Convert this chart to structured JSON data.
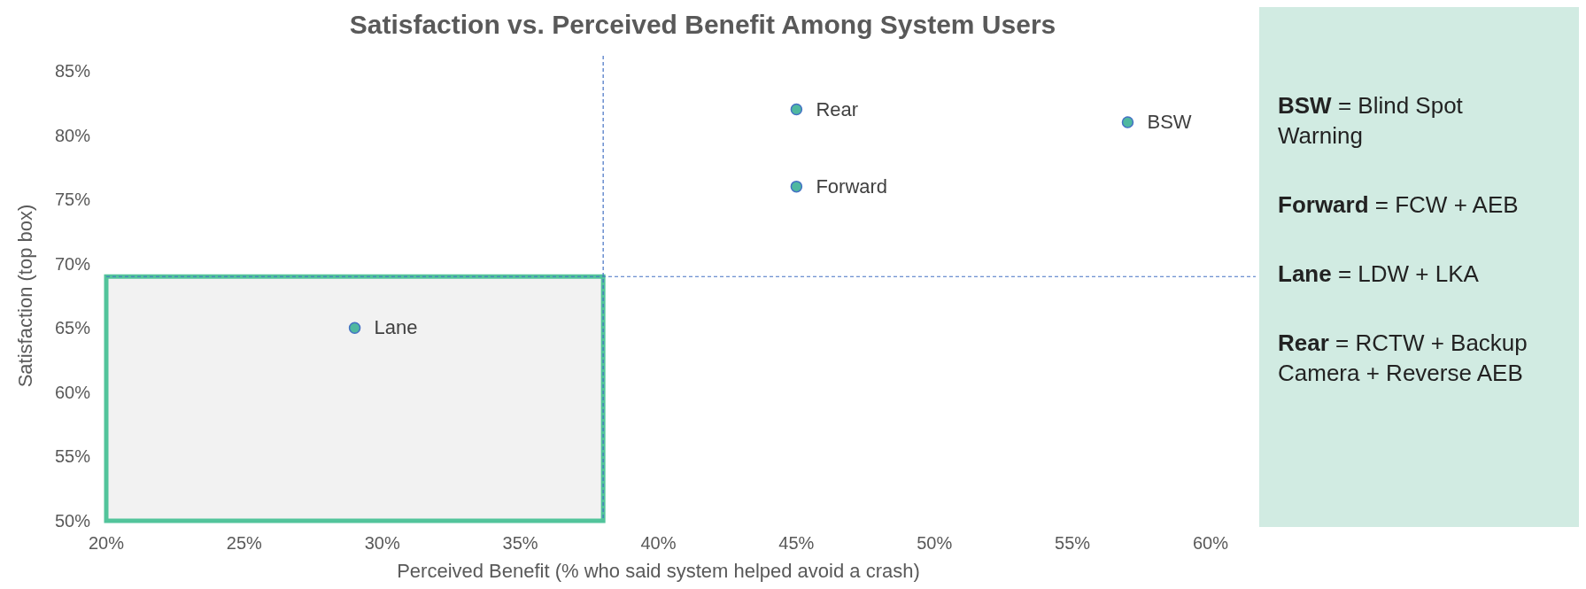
{
  "chart_data": {
    "type": "scatter",
    "title": "Satisfaction vs. Perceived Benefit Among System Users",
    "xlabel": "Perceived Benefit (% who said system helped avoid a crash)",
    "ylabel": "Satisfaction (top box)",
    "x": [
      45,
      57,
      45,
      29
    ],
    "series": [
      {
        "color": "#4fb8a0",
        "values": [
          82,
          81,
          76,
          65
        ]
      }
    ],
    "marker": "circle",
    "xlim": [
      20,
      60
    ],
    "ylim": [
      50,
      85
    ],
    "xticks": [
      {
        "value": 20,
        "label": "20%"
      },
      {
        "value": 25,
        "label": "25%"
      },
      {
        "value": 30,
        "label": "30%"
      },
      {
        "value": 35,
        "label": "35%"
      },
      {
        "value": 40,
        "label": "40%"
      },
      {
        "value": 45,
        "label": "45%"
      },
      {
        "value": 50,
        "label": "50%"
      },
      {
        "value": 55,
        "label": "55%"
      },
      {
        "value": 60,
        "label": "60%"
      }
    ],
    "yticks": [
      {
        "value": 50,
        "label": "50%"
      },
      {
        "value": 55,
        "label": "55%"
      },
      {
        "value": 60,
        "label": "60%"
      },
      {
        "value": 65,
        "label": "65%"
      },
      {
        "value": 70,
        "label": "70%"
      },
      {
        "value": 75,
        "label": "75%"
      },
      {
        "value": 80,
        "label": "80%"
      },
      {
        "value": 85,
        "label": "85%"
      }
    ],
    "grid": false,
    "ref_lines": [
      {
        "axis": "x",
        "value": 38,
        "color": "#4472c4",
        "line_style": "dashed"
      },
      {
        "axis": "y",
        "value": 69,
        "color": "#4472c4",
        "line_style": "dashed"
      }
    ],
    "annotations": [
      {
        "text": "Rear",
        "x": 45,
        "y": 82
      },
      {
        "text": "BSW",
        "x": 57,
        "y": 81
      },
      {
        "text": "Forward",
        "x": 45,
        "y": 76
      },
      {
        "text": "Lane",
        "x": 29,
        "y": 65
      },
      "BSW = Blind Spot Warning",
      "Forward = FCW + AEB",
      "Lane = LDW + LKA",
      "Rear = RCTW + Backup Camera + Reverse AEB"
    ]
  }
}
